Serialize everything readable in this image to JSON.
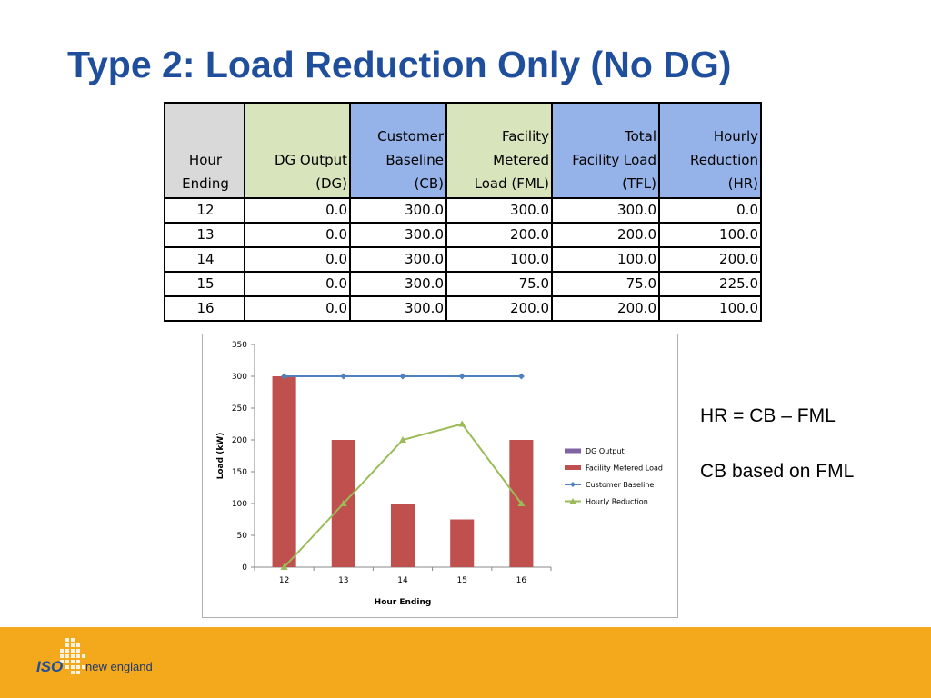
{
  "slide_title": "Type 2: Load Reduction Only (No DG)",
  "table": {
    "headers": [
      [
        "Hour",
        "Ending"
      ],
      [
        "DG Output",
        "(DG)"
      ],
      [
        "Customer",
        "Baseline",
        "(CB)"
      ],
      [
        "Facility",
        "Metered",
        "Load (FML)"
      ],
      [
        "Total",
        "Facility Load",
        "(TFL)"
      ],
      [
        "Hourly",
        "Reduction",
        "(HR)"
      ]
    ],
    "header_colors": [
      "#d9d9d9",
      "#d8e4bc",
      "#95b3e8",
      "#d8e4bc",
      "#95b3e8",
      "#95b3e8"
    ],
    "rows": [
      [
        "12",
        "0.0",
        "300.0",
        "300.0",
        "300.0",
        "0.0"
      ],
      [
        "13",
        "0.0",
        "300.0",
        "200.0",
        "200.0",
        "100.0"
      ],
      [
        "14",
        "0.0",
        "300.0",
        "100.0",
        "100.0",
        "200.0"
      ],
      [
        "15",
        "0.0",
        "300.0",
        "75.0",
        "75.0",
        "225.0"
      ],
      [
        "16",
        "0.0",
        "300.0",
        "200.0",
        "200.0",
        "100.0"
      ]
    ]
  },
  "chart_data": {
    "type": "bar",
    "categories": [
      "12",
      "13",
      "14",
      "15",
      "16"
    ],
    "xlabel": "Hour Ending",
    "ylabel": "Load (kW)",
    "ylim": [
      0,
      350
    ],
    "yticks": [
      0,
      50,
      100,
      150,
      200,
      250,
      300,
      350
    ],
    "grid": false,
    "legend_position": "right",
    "series": [
      {
        "name": "DG Output",
        "kind": "bar",
        "color": "#8064a2",
        "values": [
          0,
          0,
          0,
          0,
          0
        ]
      },
      {
        "name": "Facility Metered Load",
        "kind": "bar",
        "color": "#c0504d",
        "values": [
          300,
          200,
          100,
          75,
          200
        ]
      },
      {
        "name": "Customer Baseline",
        "kind": "line",
        "marker": "diamond",
        "color": "#4f81bd",
        "values": [
          300,
          300,
          300,
          300,
          300
        ]
      },
      {
        "name": "Hourly Reduction",
        "kind": "line",
        "marker": "triangle",
        "color": "#9bbb59",
        "values": [
          0,
          100,
          200,
          225,
          100
        ]
      }
    ]
  },
  "notes": [
    "HR = CB – FML",
    "CB based on FML"
  ],
  "footer": {
    "color": "#f4a81c",
    "logo_iso": "ISO",
    "logo_text": "new england"
  }
}
